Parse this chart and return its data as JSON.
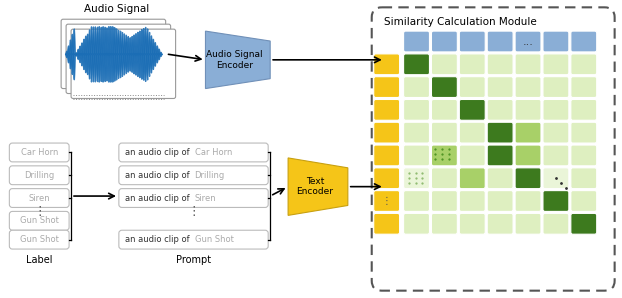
{
  "bg_color": "#ffffff",
  "similarity_module_title": "Similarity Calculation Module",
  "audio_signal_label": "Audio Signal",
  "audio_encoder_label": "Audio Signal\nEncoder",
  "text_encoder_label": "Text\nEncoder",
  "label_title": "Label",
  "prompt_title": "Prompt",
  "labels": [
    "Car Horn",
    "Drilling",
    "Siren",
    "Gun Shot"
  ],
  "prompts": [
    "an audio clip of ",
    "an audio clip of ",
    "an audio clip of ",
    "an audio clip of "
  ],
  "prompt_labels": [
    "Car Horn",
    "Drilling",
    "Siren",
    "Gun Shot"
  ],
  "blue_color": "#8aaed6",
  "yellow_color": "#f5c518",
  "dark_green": "#3d7a1e",
  "mid_green": "#6aab30",
  "light_green": "#a8d068",
  "very_light_green": "#c8e0a0",
  "lightest_green": "#deefc0",
  "faint_green": "#eaf5d8",
  "audio_wave_color": "#1a6db5",
  "grid_pattern": [
    [
      3,
      1,
      1,
      1,
      1,
      1,
      1
    ],
    [
      1,
      3,
      1,
      1,
      1,
      1,
      1
    ],
    [
      1,
      1,
      3,
      1,
      1,
      1,
      1
    ],
    [
      1,
      1,
      1,
      3,
      2,
      1,
      1
    ],
    [
      1,
      2,
      1,
      3,
      2,
      1,
      1
    ],
    [
      0,
      1,
      2,
      1,
      3,
      0,
      1
    ],
    [
      1,
      1,
      1,
      1,
      1,
      3,
      1
    ],
    [
      1,
      1,
      1,
      1,
      1,
      1,
      3
    ]
  ]
}
